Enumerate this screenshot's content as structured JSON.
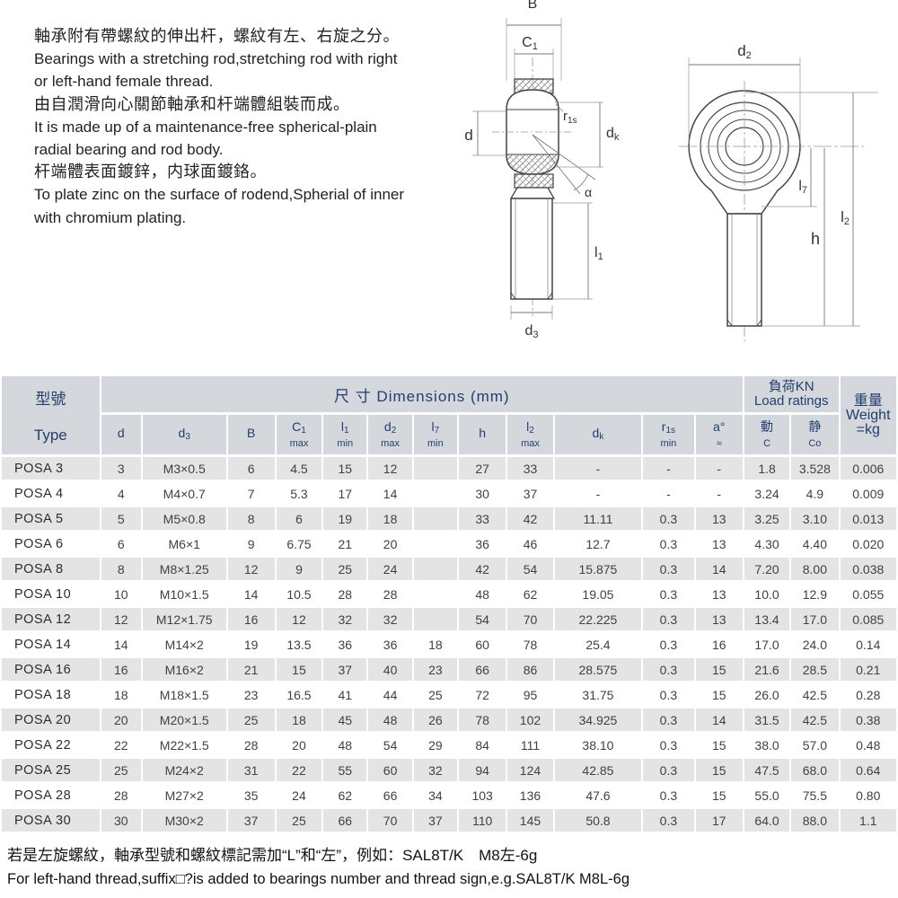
{
  "intro": {
    "lines": [
      {
        "lang": "zh",
        "text": "軸承附有帶螺紋的伸出杆，螺紋有左、右旋之分。"
      },
      {
        "lang": "en",
        "text": "Bearings with a stretching rod,stretching rod with right"
      },
      {
        "lang": "en",
        "text": "or left-hand female thread."
      },
      {
        "lang": "zh",
        "text": "由自潤滑向心關節軸承和杆端體組裝而成。"
      },
      {
        "lang": "en",
        "text": "It is made up of a maintenance-free spherical-plain"
      },
      {
        "lang": "en",
        "text": "radial bearing and rod body."
      },
      {
        "lang": "zh",
        "text": "杆端體表面鍍鋅，内球面鍍鉻。"
      },
      {
        "lang": "en",
        "text": "To plate zinc on the surface of rodend,Spherial of inner"
      },
      {
        "lang": "en",
        "text": "with chromium plating."
      }
    ]
  },
  "drawing_side": {
    "labels": {
      "B": "B",
      "C1": {
        "base": "C",
        "sub": "1"
      },
      "d": "d",
      "r1s": {
        "base": "r",
        "sub": "1s"
      },
      "dk": {
        "base": "d",
        "sub": "k"
      },
      "alpha": "α",
      "l1": {
        "base": "l",
        "sub": "1"
      },
      "d3": {
        "base": "d",
        "sub": "3"
      }
    }
  },
  "drawing_front": {
    "labels": {
      "d2": {
        "base": "d",
        "sub": "2"
      },
      "l7": {
        "base": "l",
        "sub": "7"
      },
      "h": "h",
      "l2": {
        "base": "l",
        "sub": "2"
      }
    }
  },
  "table": {
    "header": {
      "type_zh": "型號",
      "type_en": "Type",
      "dimensions_title": "尺 寸 Dimensions  (mm)",
      "load_title_zh": "負荷KN",
      "load_title_en": "Load ratings",
      "weight_zh": "重量",
      "weight_en": "Weight",
      "weight_unit": "=kg",
      "columns": [
        {
          "main": "d",
          "sub": "",
          "note": ""
        },
        {
          "main": "d",
          "sub": "3",
          "note": ""
        },
        {
          "main": "B",
          "sub": "",
          "note": ""
        },
        {
          "main": "C",
          "sub": "1",
          "note": "max"
        },
        {
          "main": "l",
          "sub": "1",
          "note": "min"
        },
        {
          "main": "d",
          "sub": "2",
          "note": "max"
        },
        {
          "main": "l",
          "sub": "7",
          "note": "min"
        },
        {
          "main": "h",
          "sub": "",
          "note": ""
        },
        {
          "main": "l",
          "sub": "2",
          "note": "max"
        },
        {
          "main": "d",
          "sub": "k",
          "note": ""
        },
        {
          "main": "r",
          "sub": "1s",
          "note": "min"
        },
        {
          "main": "a°",
          "sub": "",
          "note": "≈"
        },
        {
          "main": "動",
          "sub": "",
          "note": "C"
        },
        {
          "main": "静",
          "sub": "",
          "note": "Co"
        }
      ]
    },
    "rows": [
      [
        "POSA 3",
        "3",
        "M3×0.5",
        "6",
        "4.5",
        "15",
        "12",
        "",
        "27",
        "33",
        "-",
        "-",
        "-",
        "1.8",
        "3.528",
        "0.006"
      ],
      [
        "POSA 4",
        "4",
        "M4×0.7",
        "7",
        "5.3",
        "17",
        "14",
        "",
        "30",
        "37",
        "-",
        "-",
        "-",
        "3.24",
        "4.9",
        "0.009"
      ],
      [
        "POSA 5",
        "5",
        "M5×0.8",
        "8",
        "6",
        "19",
        "18",
        "",
        "33",
        "42",
        "11.11",
        "0.3",
        "13",
        "3.25",
        "3.10",
        "0.013"
      ],
      [
        "POSA 6",
        "6",
        "M6×1",
        "9",
        "6.75",
        "21",
        "20",
        "",
        "36",
        "46",
        "12.7",
        "0.3",
        "13",
        "4.30",
        "4.40",
        "0.020"
      ],
      [
        "POSA 8",
        "8",
        "M8×1.25",
        "12",
        "9",
        "25",
        "24",
        "",
        "42",
        "54",
        "15.875",
        "0.3",
        "14",
        "7.20",
        "8.00",
        "0.038"
      ],
      [
        "POSA 10",
        "10",
        "M10×1.5",
        "14",
        "10.5",
        "28",
        "28",
        "",
        "48",
        "62",
        "19.05",
        "0.3",
        "13",
        "10.0",
        "12.9",
        "0.055"
      ],
      [
        "POSA 12",
        "12",
        "M12×1.75",
        "16",
        "12",
        "32",
        "32",
        "",
        "54",
        "70",
        "22.225",
        "0.3",
        "13",
        "13.4",
        "17.0",
        "0.085"
      ],
      [
        "POSA 14",
        "14",
        "M14×2",
        "19",
        "13.5",
        "36",
        "36",
        "18",
        "60",
        "78",
        "25.4",
        "0.3",
        "16",
        "17.0",
        "24.0",
        "0.14"
      ],
      [
        "POSA 16",
        "16",
        "M16×2",
        "21",
        "15",
        "37",
        "40",
        "23",
        "66",
        "86",
        "28.575",
        "0.3",
        "15",
        "21.6",
        "28.5",
        "0.21"
      ],
      [
        "POSA 18",
        "18",
        "M18×1.5",
        "23",
        "16.5",
        "41",
        "44",
        "25",
        "72",
        "95",
        "31.75",
        "0.3",
        "15",
        "26.0",
        "42.5",
        "0.28"
      ],
      [
        "POSA 20",
        "20",
        "M20×1.5",
        "25",
        "18",
        "45",
        "48",
        "26",
        "78",
        "102",
        "34.925",
        "0.3",
        "14",
        "31.5",
        "42.5",
        "0.38"
      ],
      [
        "POSA 22",
        "22",
        "M22×1.5",
        "28",
        "20",
        "48",
        "54",
        "29",
        "84",
        "111",
        "38.10",
        "0.3",
        "15",
        "38.0",
        "57.0",
        "0.48"
      ],
      [
        "POSA 25",
        "25",
        "M24×2",
        "31",
        "22",
        "55",
        "60",
        "32",
        "94",
        "124",
        "42.85",
        "0.3",
        "15",
        "47.5",
        "68.0",
        "0.64"
      ],
      [
        "POSA 28",
        "28",
        "M27×2",
        "35",
        "24",
        "62",
        "66",
        "34",
        "103",
        "136",
        "47.6",
        "0.3",
        "15",
        "55.0",
        "75.5",
        "0.80"
      ],
      [
        "POSA 30",
        "30",
        "M30×2",
        "37",
        "25",
        "66",
        "70",
        "37",
        "110",
        "145",
        "50.8",
        "0.3",
        "17",
        "64.0",
        "88.0",
        "1.1"
      ]
    ]
  },
  "notes": {
    "zh": "若是左旋螺紋，軸承型號和螺紋標記需加“L”和“左”，例如：SAL8T/K　M8左-6g",
    "en": "For left-hand thread,suffix□?is added to bearings number and thread sign,e.g.SAL8T/K  M8L-6g"
  },
  "colors": {
    "header_bg": "#d4d8dd",
    "header_text": "#233d6d",
    "row_gray": "#e4e4e5",
    "row_white": "#ffffff",
    "body_text": "#414141"
  }
}
